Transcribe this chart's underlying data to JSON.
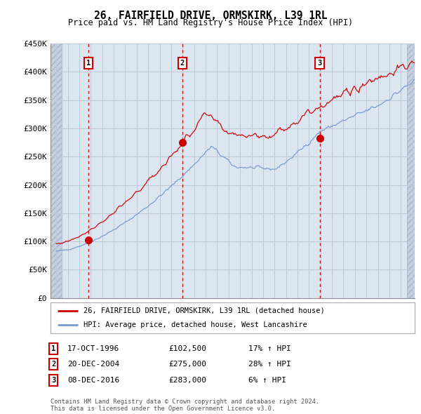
{
  "title": "26, FAIRFIELD DRIVE, ORMSKIRK, L39 1RL",
  "subtitle": "Price paid vs. HM Land Registry's House Price Index (HPI)",
  "ylabel_ticks": [
    "£0",
    "£50K",
    "£100K",
    "£150K",
    "£200K",
    "£250K",
    "£300K",
    "£350K",
    "£400K",
    "£450K"
  ],
  "ylabel_values": [
    0,
    50000,
    100000,
    150000,
    200000,
    250000,
    300000,
    350000,
    400000,
    450000
  ],
  "xlim": [
    1993.5,
    2025.2
  ],
  "ylim": [
    0,
    450000
  ],
  "sales": [
    {
      "label": "1",
      "date_num": 1996.8,
      "price": 102500
    },
    {
      "label": "2",
      "date_num": 2004.97,
      "price": 275000
    },
    {
      "label": "3",
      "date_num": 2016.93,
      "price": 283000
    }
  ],
  "legend_line1": "26, FAIRFIELD DRIVE, ORMSKIRK, L39 1RL (detached house)",
  "legend_line2": "HPI: Average price, detached house, West Lancashire",
  "table_rows": [
    {
      "num": "1",
      "date": "17-OCT-1996",
      "price": "£102,500",
      "change": "17% ↑ HPI"
    },
    {
      "num": "2",
      "date": "20-DEC-2004",
      "price": "£275,000",
      "change": "28% ↑ HPI"
    },
    {
      "num": "3",
      "date": "08-DEC-2016",
      "price": "£283,000",
      "change": "6% ↑ HPI"
    }
  ],
  "footer": "Contains HM Land Registry data © Crown copyright and database right 2024.\nThis data is licensed under the Open Government Licence v3.0.",
  "hpi_color": "#7799cc",
  "price_color": "#cc0000",
  "sale_marker_color": "#cc0000",
  "vline_color": "#cc0000",
  "box_color": "#cc0000",
  "grid_color": "#c0c8d8",
  "plot_bg": "#dce6f0"
}
